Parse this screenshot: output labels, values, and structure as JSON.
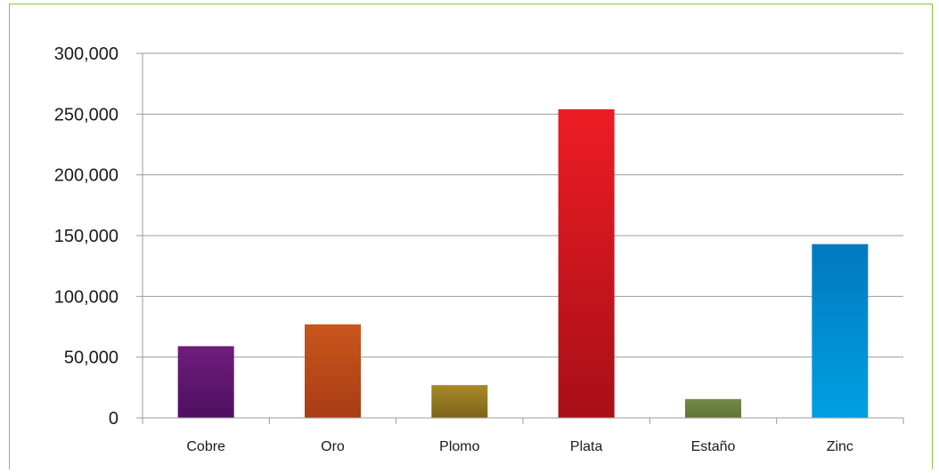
{
  "chart_data": {
    "type": "bar",
    "categories": [
      "Cobre",
      "Oro",
      "Plomo",
      "Plata",
      "Estaño",
      "Zinc"
    ],
    "values": [
      59000,
      77000,
      27000,
      254000,
      15500,
      143000
    ],
    "colors": [
      [
        "#6f1d7c",
        "#4e1060"
      ],
      [
        "#c9561d",
        "#a93c14"
      ],
      [
        "#a88a2b",
        "#7d6418"
      ],
      [
        "#ed1c24",
        "#a80f17"
      ],
      [
        "#768a48",
        "#5e7336"
      ],
      [
        "#0079bf",
        "#00a0e3"
      ]
    ],
    "y_ticks": [
      "0",
      "50,000",
      "100,000",
      "150,000",
      "200,000",
      "250,000",
      "300,000"
    ],
    "ylim": [
      0,
      300000
    ],
    "grid": true,
    "title": "",
    "xlabel": "",
    "ylabel": ""
  }
}
